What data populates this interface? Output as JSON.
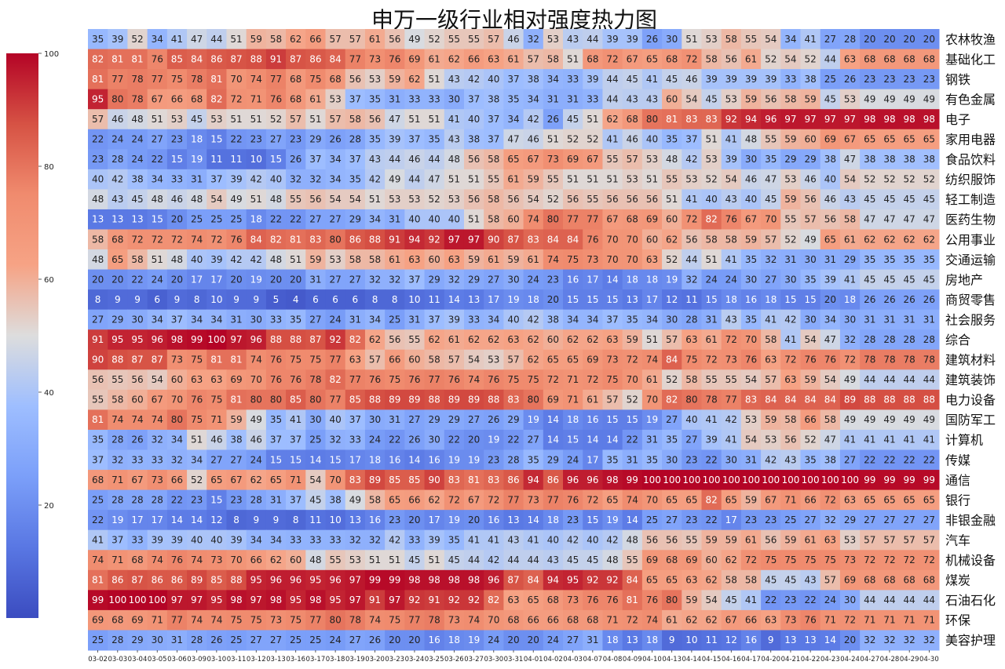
{
  "chart_data": {
    "type": "heatmap",
    "title": "申万一级行业相对强度热力图",
    "colorbar": {
      "min": 0,
      "max": 100,
      "ticks": [
        20,
        40,
        60,
        80,
        100
      ],
      "colormap": "coolwarm",
      "position": "left"
    },
    "x": [
      "03-02",
      "03-03",
      "03-04",
      "03-05",
      "03-06",
      "03-09",
      "03-10",
      "03-11",
      "03-12",
      "03-13",
      "03-16",
      "03-17",
      "03-18",
      "03-19",
      "03-20",
      "03-23",
      "03-24",
      "03-25",
      "03-26",
      "03-27",
      "03-30",
      "03-31",
      "04-01",
      "04-02",
      "04-03",
      "04-07",
      "04-08",
      "04-09",
      "04-10",
      "04-13",
      "04-14",
      "04-15",
      "04-16",
      "04-17",
      "04-20",
      "04-21",
      "04-22",
      "04-23",
      "04-24",
      "04-27",
      "04-28",
      "04-29",
      "04-30"
    ],
    "y": [
      "农林牧渔",
      "基础化工",
      "钢铁",
      "有色金属",
      "电子",
      "家用电器",
      "食品饮料",
      "纺织服饰",
      "轻工制造",
      "医药生物",
      "公用事业",
      "交通运输",
      "房地产",
      "商贸零售",
      "社会服务",
      "综合",
      "建筑材料",
      "建筑装饰",
      "电力设备",
      "国防军工",
      "计算机",
      "传媒",
      "通信",
      "银行",
      "非银金融",
      "汽车",
      "机械设备",
      "煤炭",
      "石油石化",
      "环保",
      "美容护理"
    ],
    "values": [
      [
        35,
        39,
        52,
        34,
        41,
        47,
        44,
        51,
        59,
        58,
        62,
        66,
        57,
        57,
        61,
        56,
        49,
        52,
        55,
        55,
        57,
        46,
        32,
        53,
        43,
        44,
        39,
        39,
        26,
        30,
        51,
        53,
        58,
        55,
        54,
        34,
        41,
        27,
        28,
        20,
        20,
        20,
        20
      ],
      [
        82,
        81,
        81,
        76,
        85,
        84,
        86,
        87,
        88,
        91,
        87,
        86,
        84,
        77,
        73,
        76,
        69,
        61,
        62,
        66,
        63,
        61,
        57,
        58,
        51,
        68,
        72,
        67,
        65,
        68,
        72,
        58,
        56,
        61,
        52,
        54,
        52,
        44,
        63,
        68,
        68,
        68,
        68
      ],
      [
        81,
        77,
        78,
        77,
        75,
        78,
        81,
        70,
        74,
        77,
        68,
        75,
        68,
        56,
        53,
        59,
        62,
        51,
        43,
        42,
        40,
        37,
        38,
        34,
        33,
        39,
        44,
        45,
        41,
        45,
        46,
        39,
        39,
        39,
        39,
        33,
        38,
        25,
        26,
        23,
        23,
        23,
        23
      ],
      [
        95,
        80,
        78,
        67,
        66,
        68,
        82,
        72,
        71,
        76,
        68,
        61,
        53,
        37,
        35,
        31,
        33,
        33,
        30,
        37,
        38,
        35,
        34,
        31,
        31,
        33,
        44,
        43,
        43,
        60,
        54,
        45,
        53,
        59,
        56,
        58,
        59,
        45,
        53,
        49,
        49,
        49,
        49
      ],
      [
        57,
        46,
        48,
        51,
        53,
        45,
        53,
        51,
        51,
        52,
        57,
        51,
        57,
        58,
        56,
        47,
        51,
        51,
        41,
        40,
        37,
        34,
        42,
        26,
        45,
        51,
        62,
        68,
        80,
        81,
        83,
        83,
        92,
        94,
        96,
        97,
        97,
        97,
        97,
        98,
        98,
        98,
        98
      ],
      [
        22,
        24,
        24,
        27,
        23,
        18,
        15,
        22,
        23,
        27,
        23,
        29,
        26,
        28,
        35,
        39,
        37,
        35,
        43,
        38,
        37,
        47,
        46,
        51,
        52,
        52,
        41,
        46,
        40,
        35,
        37,
        51,
        41,
        48,
        55,
        59,
        60,
        69,
        67,
        65,
        65,
        65,
        65
      ],
      [
        23,
        28,
        24,
        22,
        15,
        19,
        11,
        11,
        10,
        15,
        26,
        37,
        34,
        37,
        43,
        44,
        46,
        44,
        48,
        56,
        58,
        65,
        67,
        73,
        69,
        67,
        55,
        57,
        53,
        48,
        42,
        53,
        39,
        30,
        35,
        29,
        29,
        38,
        47,
        38,
        38,
        38,
        38
      ],
      [
        40,
        42,
        38,
        34,
        33,
        31,
        37,
        39,
        42,
        40,
        32,
        32,
        34,
        35,
        42,
        49,
        44,
        47,
        51,
        51,
        55,
        61,
        59,
        55,
        51,
        51,
        51,
        53,
        51,
        55,
        53,
        52,
        54,
        46,
        47,
        53,
        46,
        40,
        54,
        52,
        52,
        52,
        52
      ],
      [
        48,
        43,
        45,
        48,
        46,
        48,
        54,
        49,
        51,
        48,
        55,
        56,
        54,
        54,
        51,
        53,
        53,
        52,
        53,
        56,
        58,
        56,
        54,
        52,
        56,
        55,
        56,
        56,
        56,
        51,
        41,
        40,
        43,
        40,
        45,
        59,
        56,
        46,
        43,
        45,
        45,
        45,
        45
      ],
      [
        13,
        13,
        13,
        15,
        20,
        25,
        25,
        25,
        18,
        22,
        22,
        27,
        27,
        29,
        34,
        31,
        40,
        40,
        40,
        51,
        58,
        60,
        74,
        80,
        77,
        77,
        67,
        68,
        69,
        60,
        72,
        82,
        76,
        67,
        70,
        55,
        57,
        56,
        58,
        47,
        47,
        47,
        47
      ],
      [
        58,
        68,
        72,
        72,
        72,
        74,
        72,
        76,
        84,
        82,
        81,
        83,
        80,
        86,
        88,
        91,
        94,
        92,
        97,
        97,
        90,
        87,
        83,
        84,
        84,
        76,
        70,
        70,
        60,
        62,
        56,
        58,
        58,
        59,
        57,
        52,
        49,
        65,
        61,
        62,
        62,
        62,
        62
      ],
      [
        48,
        65,
        58,
        51,
        48,
        40,
        39,
        42,
        42,
        48,
        51,
        59,
        53,
        58,
        58,
        61,
        63,
        60,
        63,
        59,
        61,
        59,
        61,
        74,
        75,
        73,
        70,
        70,
        63,
        52,
        44,
        51,
        41,
        35,
        32,
        31,
        30,
        31,
        29,
        35,
        35,
        35,
        35
      ],
      [
        20,
        20,
        22,
        24,
        20,
        17,
        17,
        20,
        19,
        20,
        20,
        31,
        27,
        27,
        32,
        32,
        37,
        29,
        32,
        29,
        27,
        30,
        24,
        23,
        16,
        17,
        14,
        18,
        18,
        19,
        32,
        24,
        24,
        30,
        27,
        30,
        35,
        39,
        41,
        45,
        45,
        45,
        45
      ],
      [
        8,
        9,
        9,
        6,
        9,
        8,
        10,
        9,
        9,
        5,
        4,
        6,
        6,
        6,
        8,
        8,
        10,
        11,
        14,
        13,
        17,
        19,
        18,
        20,
        15,
        15,
        15,
        13,
        17,
        12,
        11,
        15,
        18,
        16,
        18,
        15,
        15,
        20,
        18,
        26,
        26,
        26,
        26
      ],
      [
        27,
        29,
        30,
        34,
        37,
        34,
        34,
        31,
        30,
        33,
        35,
        27,
        24,
        31,
        34,
        25,
        31,
        37,
        39,
        33,
        34,
        40,
        42,
        38,
        34,
        34,
        37,
        35,
        34,
        30,
        28,
        31,
        43,
        35,
        41,
        42,
        30,
        34,
        30,
        31,
        31,
        31,
        31
      ],
      [
        91,
        95,
        95,
        96,
        98,
        99,
        100,
        97,
        96,
        88,
        88,
        87,
        92,
        82,
        62,
        56,
        55,
        62,
        61,
        62,
        62,
        63,
        62,
        60,
        62,
        62,
        63,
        59,
        51,
        57,
        63,
        61,
        72,
        70,
        58,
        41,
        54,
        47,
        32,
        28,
        28,
        28,
        28
      ],
      [
        90,
        88,
        87,
        87,
        73,
        75,
        81,
        81,
        74,
        76,
        75,
        75,
        77,
        63,
        57,
        66,
        60,
        58,
        57,
        54,
        53,
        57,
        62,
        65,
        65,
        69,
        73,
        72,
        74,
        84,
        75,
        72,
        73,
        76,
        63,
        72,
        76,
        76,
        72,
        78,
        78,
        78,
        78
      ],
      [
        56,
        55,
        56,
        54,
        60,
        63,
        63,
        69,
        70,
        76,
        76,
        78,
        82,
        77,
        76,
        75,
        76,
        77,
        76,
        74,
        76,
        75,
        75,
        72,
        71,
        72,
        75,
        70,
        61,
        52,
        58,
        55,
        55,
        54,
        57,
        63,
        59,
        54,
        49,
        44,
        44,
        44,
        44
      ],
      [
        55,
        58,
        60,
        67,
        70,
        76,
        75,
        81,
        80,
        80,
        85,
        80,
        77,
        85,
        88,
        89,
        89,
        88,
        89,
        89,
        88,
        83,
        80,
        69,
        71,
        61,
        57,
        52,
        70,
        82,
        80,
        78,
        77,
        83,
        84,
        84,
        84,
        84,
        89,
        88,
        88,
        88,
        88
      ],
      [
        81,
        74,
        74,
        74,
        80,
        75,
        71,
        59,
        49,
        35,
        41,
        30,
        40,
        37,
        30,
        31,
        27,
        29,
        29,
        27,
        26,
        29,
        19,
        14,
        18,
        16,
        15,
        15,
        19,
        27,
        40,
        41,
        42,
        53,
        59,
        58,
        66,
        58,
        49,
        49,
        49,
        49,
        49
      ],
      [
        35,
        28,
        26,
        32,
        34,
        51,
        46,
        38,
        46,
        37,
        37,
        25,
        32,
        33,
        24,
        22,
        26,
        30,
        22,
        20,
        19,
        22,
        27,
        14,
        15,
        14,
        14,
        22,
        31,
        35,
        27,
        39,
        41,
        54,
        53,
        56,
        52,
        47,
        41,
        41,
        41,
        41,
        41
      ],
      [
        37,
        32,
        33,
        33,
        32,
        34,
        27,
        27,
        24,
        15,
        15,
        14,
        15,
        17,
        18,
        16,
        14,
        16,
        19,
        19,
        23,
        28,
        35,
        29,
        24,
        17,
        35,
        31,
        35,
        30,
        23,
        22,
        30,
        31,
        42,
        43,
        35,
        38,
        27,
        22,
        22,
        22,
        22
      ],
      [
        68,
        71,
        67,
        73,
        66,
        52,
        65,
        67,
        62,
        65,
        71,
        54,
        70,
        83,
        89,
        85,
        85,
        90,
        83,
        81,
        83,
        86,
        94,
        86,
        96,
        96,
        98,
        99,
        100,
        100,
        100,
        100,
        100,
        100,
        100,
        100,
        100,
        100,
        100,
        99,
        99,
        99,
        99
      ],
      [
        25,
        28,
        28,
        28,
        22,
        23,
        15,
        23,
        28,
        31,
        37,
        45,
        38,
        49,
        58,
        65,
        66,
        62,
        72,
        67,
        72,
        77,
        73,
        77,
        76,
        72,
        65,
        74,
        70,
        65,
        65,
        82,
        65,
        59,
        67,
        71,
        66,
        72,
        63,
        65,
        65,
        65,
        65
      ],
      [
        22,
        19,
        17,
        17,
        14,
        14,
        12,
        8,
        9,
        9,
        8,
        11,
        10,
        13,
        16,
        23,
        20,
        17,
        19,
        20,
        16,
        13,
        14,
        18,
        23,
        15,
        19,
        14,
        25,
        27,
        23,
        22,
        17,
        23,
        23,
        25,
        27,
        32,
        29,
        27,
        27,
        27,
        27
      ],
      [
        41,
        37,
        33,
        39,
        39,
        40,
        40,
        39,
        34,
        34,
        33,
        33,
        33,
        32,
        32,
        42,
        33,
        39,
        35,
        41,
        41,
        43,
        41,
        40,
        42,
        40,
        42,
        48,
        56,
        56,
        55,
        59,
        59,
        61,
        56,
        59,
        61,
        63,
        53,
        57,
        57,
        57,
        57
      ],
      [
        74,
        71,
        68,
        74,
        76,
        74,
        73,
        70,
        66,
        62,
        60,
        48,
        55,
        53,
        51,
        51,
        45,
        51,
        45,
        44,
        42,
        44,
        44,
        43,
        45,
        45,
        48,
        55,
        69,
        68,
        69,
        60,
        62,
        72,
        75,
        75,
        75,
        75,
        73,
        72,
        72,
        72,
        72
      ],
      [
        81,
        86,
        87,
        86,
        86,
        89,
        85,
        88,
        95,
        96,
        96,
        95,
        96,
        97,
        99,
        99,
        98,
        98,
        98,
        98,
        96,
        87,
        84,
        94,
        95,
        92,
        92,
        84,
        65,
        65,
        63,
        62,
        58,
        58,
        45,
        45,
        43,
        57,
        69,
        68,
        68,
        68,
        68
      ],
      [
        99,
        100,
        100,
        100,
        97,
        97,
        95,
        98,
        97,
        98,
        95,
        98,
        95,
        97,
        91,
        97,
        92,
        91,
        92,
        92,
        82,
        63,
        65,
        68,
        73,
        76,
        76,
        81,
        76,
        80,
        59,
        54,
        45,
        41,
        22,
        23,
        22,
        24,
        30,
        44,
        44,
        44,
        44
      ],
      [
        69,
        68,
        69,
        71,
        77,
        74,
        74,
        75,
        75,
        73,
        75,
        77,
        80,
        78,
        74,
        75,
        77,
        78,
        73,
        74,
        70,
        68,
        66,
        66,
        68,
        68,
        71,
        72,
        74,
        61,
        62,
        62,
        67,
        66,
        63,
        73,
        76,
        71,
        72,
        71,
        71,
        71,
        71
      ],
      [
        25,
        28,
        29,
        30,
        31,
        28,
        26,
        25,
        27,
        27,
        25,
        25,
        24,
        27,
        26,
        20,
        20,
        16,
        18,
        19,
        24,
        20,
        20,
        24,
        27,
        31,
        18,
        13,
        18,
        9,
        10,
        11,
        12,
        16,
        9,
        13,
        13,
        14,
        20,
        32,
        32,
        32,
        32
      ]
    ]
  }
}
